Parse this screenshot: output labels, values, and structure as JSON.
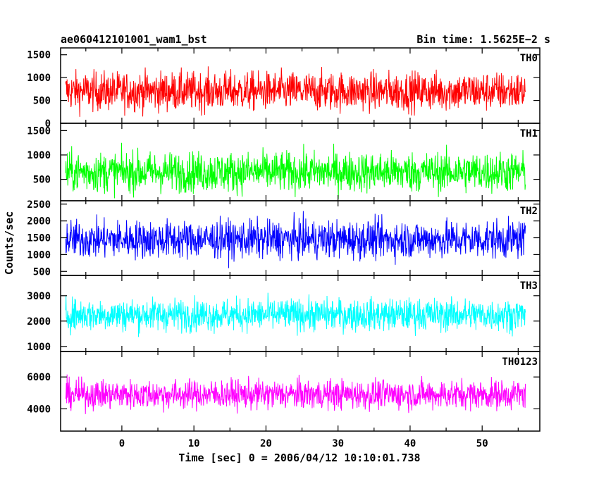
{
  "header": {
    "title_left": "ae060412101001_wam1_bst",
    "title_right": "Bin time: 1.5625E−2 s"
  },
  "chart_data": {
    "type": "line",
    "ylabel": "Counts/sec",
    "xlabel": "Time [sec] 0 = 2006/04/12 10:10:01.738",
    "xlim": [
      -8.5,
      58
    ],
    "data_x_range": [
      -7.8,
      56.0
    ],
    "x_ticks": [
      0,
      10,
      20,
      30,
      40,
      50
    ],
    "panels": [
      {
        "name": "TH0",
        "color": "#ff0000",
        "ylim": [
          0,
          1650
        ],
        "yticks": [
          0,
          500,
          1000,
          1500
        ],
        "mean": 700,
        "spread": 300,
        "min_clip": 0,
        "max_clip": 1650
      },
      {
        "name": "TH1",
        "color": "#00ff00",
        "ylim": [
          60,
          1650
        ],
        "yticks": [
          500,
          1000,
          1500
        ],
        "mean": 650,
        "spread": 290,
        "min_clip": 60,
        "max_clip": 1650
      },
      {
        "name": "TH2",
        "color": "#0000ff",
        "ylim": [
          380,
          2600
        ],
        "yticks": [
          500,
          1000,
          1500,
          2000,
          2500
        ],
        "mean": 1450,
        "spread": 400,
        "min_clip": 380,
        "max_clip": 2600
      },
      {
        "name": "TH3",
        "color": "#00ffff",
        "ylim": [
          800,
          3800
        ],
        "yticks": [
          1000,
          2000,
          3000
        ],
        "mean": 2250,
        "spread": 450,
        "min_clip": 800,
        "max_clip": 3800
      },
      {
        "name": "TH0123",
        "color": "#ff00ff",
        "ylim": [
          2600,
          7600
        ],
        "yticks": [
          4000,
          6000
        ],
        "mean": 4900,
        "spread": 650,
        "min_clip": 2600,
        "max_clip": 7600
      }
    ]
  }
}
